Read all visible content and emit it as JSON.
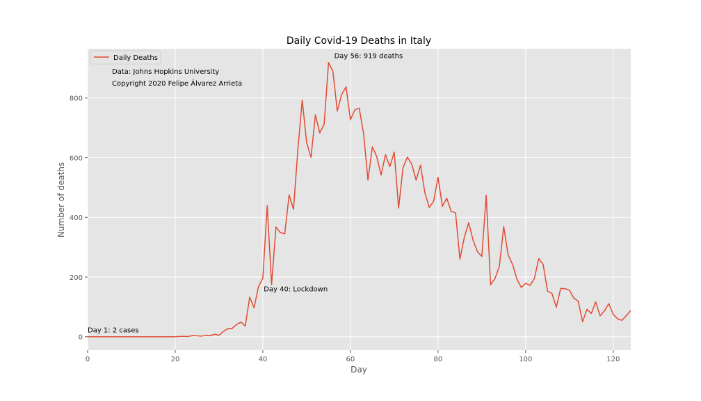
{
  "chart_data": {
    "type": "line",
    "title": "Daily Covid-19 Deaths in Italy",
    "xlabel": "Day",
    "ylabel": "Number of deaths",
    "xlim": [
      0,
      124
    ],
    "ylim": [
      -45,
      965
    ],
    "x_ticks": [
      0,
      20,
      40,
      60,
      80,
      100,
      120
    ],
    "y_ticks": [
      0,
      200,
      400,
      600,
      800
    ],
    "grid": true,
    "legend_position": "top-left",
    "series": [
      {
        "name": "Daily Deaths",
        "color": "#e24a33",
        "x_start": 0,
        "x_step": 1,
        "values": [
          0,
          0,
          0,
          0,
          0,
          0,
          0,
          0,
          0,
          0,
          0,
          0,
          0,
          0,
          0,
          0,
          0,
          0,
          0,
          0,
          0,
          1,
          1,
          1,
          4,
          3,
          2,
          5,
          4,
          8,
          5,
          18,
          27,
          28,
          41,
          49,
          36,
          133,
          97,
          168,
          196,
          439,
          175,
          368,
          349,
          345,
          475,
          427,
          627,
          793,
          651,
          601,
          743,
          683,
          712,
          919,
          889,
          756,
          812,
          837,
          727,
          760,
          766,
          681,
          525,
          636,
          604,
          542,
          610,
          570,
          619,
          431,
          566,
          602,
          578,
          525,
          575,
          482,
          433,
          454,
          534,
          437,
          464,
          420,
          415,
          260,
          333,
          382,
          323,
          285,
          269,
          474,
          174,
          195,
          236,
          369,
          274,
          243,
          194,
          165,
          179,
          172,
          195,
          262,
          242,
          153,
          145,
          99,
          162,
          161,
          156,
          130,
          119,
          50,
          92,
          78,
          117,
          70,
          87,
          111,
          75,
          60,
          55,
          71,
          88
        ]
      }
    ],
    "annotations": [
      {
        "text": "Day 1: 2 cases",
        "x": 0,
        "y": 14
      },
      {
        "text": "Day 40: Lockdown",
        "x": 40.2,
        "y": 152
      },
      {
        "text": "Day 56: 919 deaths",
        "x": 56.3,
        "y": 934
      }
    ],
    "notes": [
      "Data: Johns Hopkins University",
      "Copyright 2020 Felipe Álvarez Arrieta"
    ],
    "colors": {
      "plot_background": "#e5e5e5",
      "grid": "#ffffff",
      "tick": "#555555",
      "line": "#e24a33"
    }
  }
}
